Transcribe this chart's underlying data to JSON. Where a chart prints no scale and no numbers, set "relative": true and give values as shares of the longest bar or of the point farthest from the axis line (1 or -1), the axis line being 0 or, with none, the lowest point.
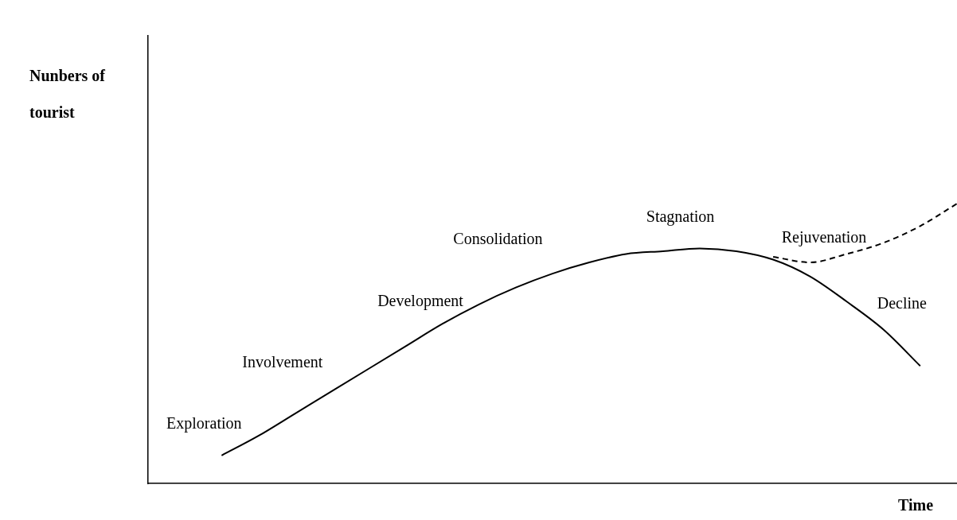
{
  "chart_data": {
    "type": "line",
    "relative": true,
    "ylabel": "Nunbers of tourist",
    "xlabel": "Time",
    "legend": false,
    "marker": "none",
    "grid": false,
    "categories": [
      null,
      null,
      null,
      null,
      null,
      null,
      null,
      null,
      null,
      null,
      null,
      null,
      null,
      null,
      null,
      null,
      null,
      null,
      null,
      null,
      null,
      null,
      null
    ],
    "series": [
      {
        "color": "#000000",
        "line_style": "solid",
        "values": [
          null,
          null,
          0.1,
          0.17,
          0.25,
          0.33,
          0.41,
          0.49,
          0.57,
          0.64,
          0.7,
          0.75,
          0.79,
          0.82,
          0.83,
          0.84,
          0.83,
          0.8,
          0.74,
          0.65,
          0.55,
          0.42,
          null
        ]
      },
      {
        "color": "#000000",
        "line_style": "dashed",
        "values": [
          null,
          null,
          null,
          null,
          null,
          null,
          null,
          null,
          null,
          null,
          null,
          null,
          null,
          null,
          null,
          null,
          null,
          0.81,
          0.79,
          0.82,
          0.86,
          0.92,
          1.0
        ]
      }
    ],
    "annotations": [
      "Exploration",
      "Involvement",
      "Development",
      "Consolidation",
      "Stagnation",
      "Rejuvenation",
      "Decline"
    ]
  }
}
